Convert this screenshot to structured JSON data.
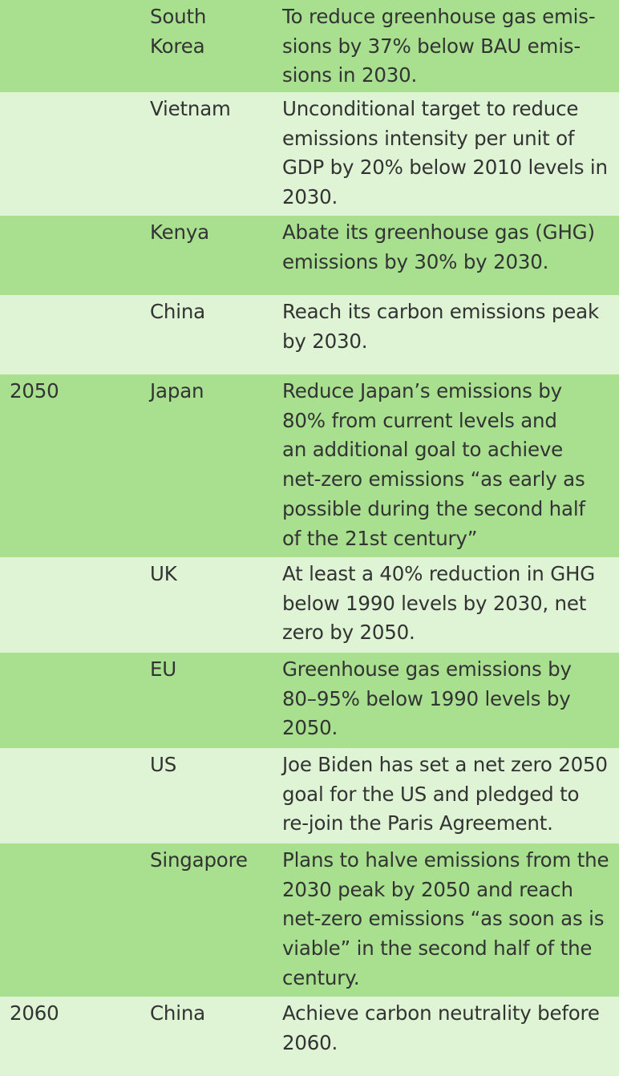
{
  "rows": [
    {
      "year": "",
      "country": "South\nKorea",
      "target": "To reduce greenhouse gas emis-\nsions by 37% below BAU emis-\nsions in 2030."
    },
    {
      "year": "",
      "country": "Vietnam",
      "target": "Unconditional target to reduce\nemissions intensity per unit of\nGDP by 20% below 2010 levels in\n2030."
    },
    {
      "year": "",
      "country": "Kenya",
      "target": "Abate its greenhouse gas (GHG)\nemissions by 30% by 2030."
    },
    {
      "year": "",
      "country": "China",
      "target": "Reach its carbon emissions peak\nby 2030."
    },
    {
      "year": "2050",
      "country": "Japan",
      "target": "Reduce Japan’s emissions by\n80% from current levels and\nan additional goal to achieve\nnet-zero emissions “as early as\npossible during the second half\nof the 21st century”"
    },
    {
      "year": "",
      "country": "UK",
      "target": "At least a 40% reduction in GHG\nbelow 1990 levels by 2030, net\nzero by 2050."
    },
    {
      "year": "",
      "country": "EU",
      "target": "Greenhouse gas emissions by\n80–95% below 1990 levels by\n2050."
    },
    {
      "year": "",
      "country": "US",
      "target": "Joe Biden has set a net zero 2050\ngoal for the US and pledged to\nre-join the Paris Agreement."
    },
    {
      "year": "",
      "country": "Singapore",
      "target": "Plans to halve emissions from the\n2030 peak by 2050 and reach\nnet-zero emissions “as soon as is\nviable” in the second half of the\ncentury."
    },
    {
      "year": "2060",
      "country": "China",
      "target": "Achieve carbon neutrality before\n2060."
    }
  ],
  "colors": {
    "row_dark": "#a8e090",
    "row_light": "#def4d4",
    "text": "#333333"
  }
}
